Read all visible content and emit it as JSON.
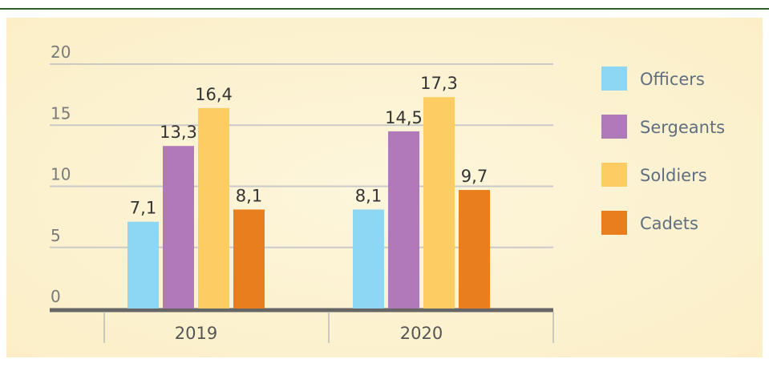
{
  "chart_data": {
    "type": "bar",
    "categories": [
      "2019",
      "2020"
    ],
    "series": [
      {
        "name": "Officers",
        "color": "#8dd6f4",
        "values": [
          7.1,
          8.1
        ],
        "value_labels": [
          "7,1",
          "8,1"
        ]
      },
      {
        "name": "Sergeants",
        "color": "#b07ab8",
        "values": [
          13.3,
          14.5
        ],
        "value_labels": [
          "13,3",
          "14,5"
        ]
      },
      {
        "name": "Soldiers",
        "color": "#fdcd63",
        "values": [
          16.4,
          17.3
        ],
        "value_labels": [
          "16,4",
          "17,3"
        ]
      },
      {
        "name": "Cadets",
        "color": "#e97e1f",
        "values": [
          8.1,
          9.7
        ],
        "value_labels": [
          "8,1",
          "9,7"
        ]
      }
    ],
    "ylim": [
      0,
      20
    ],
    "yticks": [
      0,
      5,
      10,
      15,
      20
    ],
    "grid": true,
    "legend": "right"
  }
}
